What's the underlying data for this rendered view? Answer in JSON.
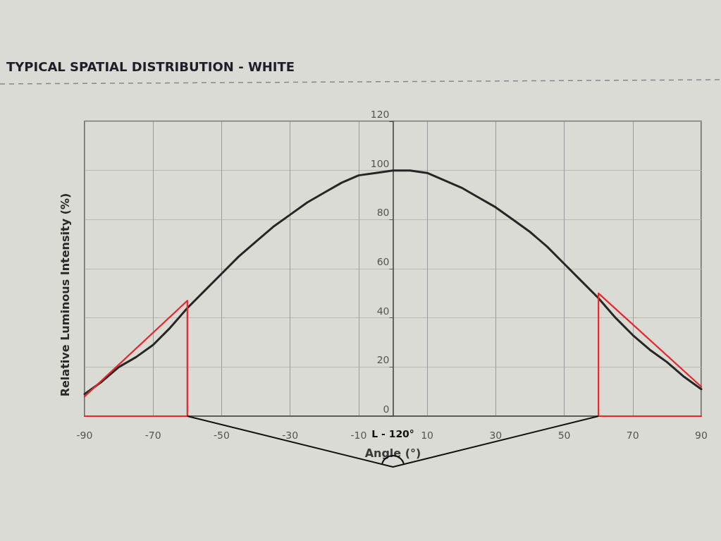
{
  "chart_data": {
    "type": "line",
    "title": "TYPICAL SPATIAL DISTRIBUTION - WHITE",
    "xlabel": "Angle (°)",
    "ylabel": "Relative Luminous Intensity (%)",
    "annotations": [
      "L - 120°"
    ],
    "series": [
      {
        "color": "#262626",
        "x": [
          -90,
          -85,
          -80,
          -75,
          -70,
          -65,
          -60,
          -55,
          -50,
          -45,
          -40,
          -35,
          -30,
          -25,
          -20,
          -15,
          -10,
          -5,
          0,
          5,
          10,
          15,
          20,
          25,
          30,
          35,
          40,
          45,
          50,
          55,
          60,
          65,
          70,
          75,
          80,
          85,
          90
        ],
        "values": [
          9,
          14,
          20,
          24,
          29,
          36,
          44,
          51,
          58,
          65,
          71,
          77,
          82,
          87,
          91,
          95,
          98,
          99,
          100,
          100,
          99,
          96,
          93,
          89,
          85,
          80,
          75,
          69,
          62,
          55,
          48,
          40,
          33,
          27,
          22,
          16,
          11
        ]
      },
      {
        "color": "#e8262b",
        "x": [
          -90,
          -60,
          -60,
          -90
        ],
        "values": [
          8,
          47,
          0,
          0
        ]
      },
      {
        "color": "#e8262b",
        "x": [
          90,
          60,
          60,
          90
        ],
        "values": [
          12,
          50,
          0,
          0
        ]
      }
    ],
    "xlim": [
      -90,
      90
    ],
    "xticks": [
      -90,
      -70,
      -50,
      -30,
      -10,
      10,
      30,
      50,
      70,
      90
    ],
    "ylim": [
      0,
      120
    ],
    "yticks": [
      0,
      20,
      40,
      60,
      80,
      100,
      120
    ],
    "grid": true,
    "marker": "none",
    "line_style": "solid"
  }
}
